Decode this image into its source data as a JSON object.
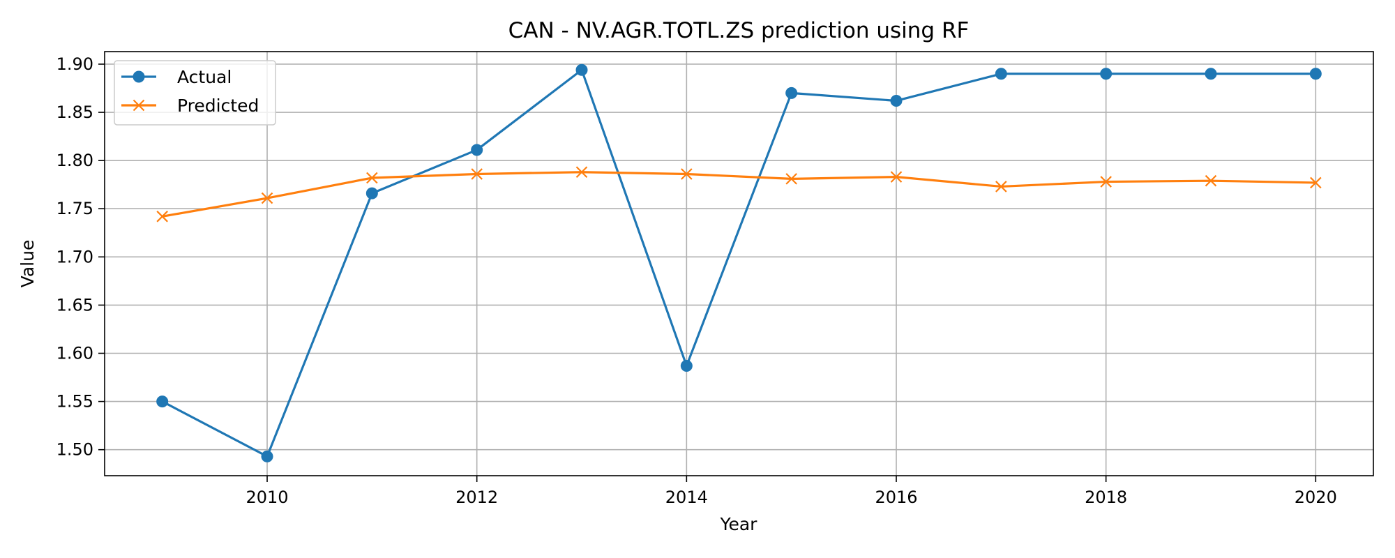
{
  "chart_data": {
    "type": "line",
    "title": "CAN - NV.AGR.TOTL.ZS prediction using RF",
    "xlabel": "Year",
    "ylabel": "Value",
    "x": [
      2009,
      2010,
      2011,
      2012,
      2013,
      2014,
      2015,
      2016,
      2017,
      2018,
      2019,
      2020
    ],
    "xlim": [
      2008.45,
      2020.55
    ],
    "ylim": [
      1.473,
      1.913
    ],
    "xticks": [
      "2010",
      "2012",
      "2014",
      "2016",
      "2018",
      "2020"
    ],
    "yticks": [
      "1.50",
      "1.55",
      "1.60",
      "1.65",
      "1.70",
      "1.75",
      "1.80",
      "1.85",
      "1.90"
    ],
    "grid": true,
    "legend_position": "top-left",
    "series": [
      {
        "name": "Actual",
        "color": "#1f77b4",
        "marker": "circle",
        "values": [
          1.55,
          1.493,
          1.766,
          1.811,
          1.894,
          1.587,
          1.87,
          1.862,
          1.89,
          1.89,
          1.89,
          1.89
        ]
      },
      {
        "name": "Predicted",
        "color": "#ff7f0e",
        "marker": "x",
        "values": [
          1.742,
          1.761,
          1.782,
          1.786,
          1.788,
          1.786,
          1.781,
          1.783,
          1.773,
          1.778,
          1.779,
          1.777
        ]
      }
    ]
  }
}
